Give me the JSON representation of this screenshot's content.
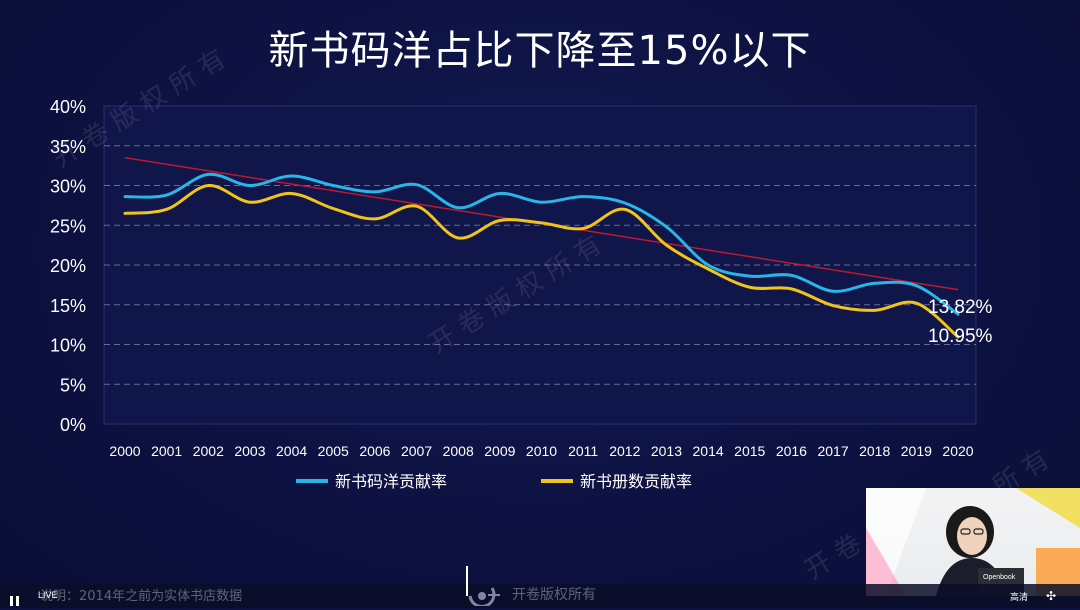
{
  "title": "新书码洋占比下降至15%以下",
  "chart_data": {
    "type": "line",
    "title": "新书码洋占比下降至15%以下",
    "xlabel": "",
    "ylabel": "",
    "x": [
      "2000",
      "2001",
      "2002",
      "2003",
      "2004",
      "2005",
      "2006",
      "2007",
      "2008",
      "2009",
      "2010",
      "2011",
      "2012",
      "2013",
      "2014",
      "2015",
      "2016",
      "2017",
      "2018",
      "2019",
      "2020"
    ],
    "y_ticks": [
      "0%",
      "5%",
      "10%",
      "15%",
      "20%",
      "25%",
      "30%",
      "35%",
      "40%"
    ],
    "ylim": [
      0,
      40
    ],
    "grid": true,
    "legend_position": "bottom",
    "series": [
      {
        "name": "新书码洋贡献率",
        "color": "#29b6e6",
        "values": [
          28.6,
          28.8,
          31.4,
          30.0,
          31.2,
          30.0,
          29.2,
          30.1,
          27.2,
          29.0,
          27.9,
          28.6,
          27.8,
          24.8,
          20.0,
          18.6,
          18.7,
          16.7,
          17.7,
          17.4,
          13.82
        ]
      },
      {
        "name": "新书册数贡献率",
        "color": "#f0c419",
        "values": [
          26.5,
          27.0,
          30.0,
          27.9,
          29.0,
          27.1,
          25.8,
          27.4,
          23.4,
          25.6,
          25.3,
          24.6,
          27.0,
          22.5,
          19.5,
          17.2,
          17.0,
          14.9,
          14.3,
          15.2,
          10.95
        ]
      }
    ],
    "trendline": {
      "color": "#c0192c",
      "start": 33.5,
      "end": 16.9
    },
    "end_labels": [
      "13.82%",
      "10.95%"
    ]
  },
  "watermark": {
    "text_a": "开 卷 版 权 所 有",
    "text_b": "开 卷 版 权 所 有",
    "text_c": "所 有",
    "text_d": "开 卷"
  },
  "footer": {
    "note": "说明：2014年之前为实体书店数据",
    "brand": "开卷版权所有",
    "live": "LIVE",
    "quality": "高清",
    "fullscreen_icon": "✣"
  },
  "camera": {
    "laptop_brand": "Openbook"
  }
}
